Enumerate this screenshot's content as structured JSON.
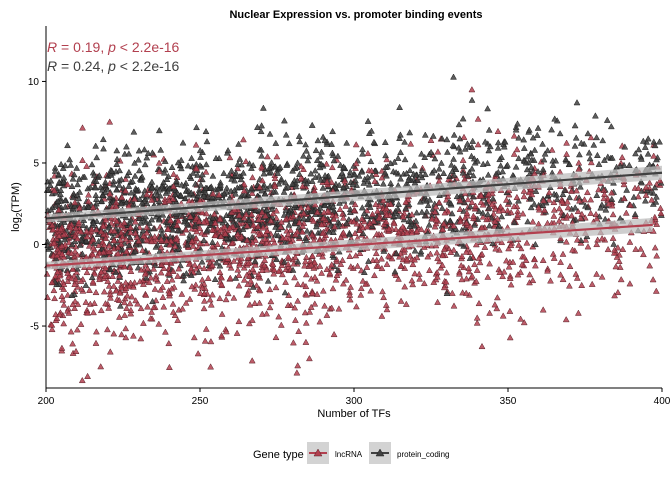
{
  "chart_data": {
    "type": "scatter",
    "title": "Nuclear Expression vs. promoter binding events",
    "xlabel": "Number of TFs",
    "ylabel_main": "log",
    "ylabel_sub": "2",
    "ylabel_tail": "(TPM)",
    "xlim": [
      200,
      400
    ],
    "ylim": [
      -8.8,
      13.4
    ],
    "x_ticks": [
      200,
      250,
      300,
      350,
      400
    ],
    "y_ticks": [
      -5,
      0,
      5,
      10
    ],
    "grid": false,
    "marker": "triangle",
    "legend_title": "Gene type",
    "legend_position": "bottom",
    "series": [
      {
        "name": "lncRNA",
        "color": "#b2404f",
        "stat_r": "R",
        "stat_rest": " = 0.19, ",
        "stat_p": "p",
        "stat_tail": " < 2.2e-16",
        "trend": {
          "x0": 200,
          "y0": -1.3,
          "x1": 397,
          "y1": 1.2
        }
      },
      {
        "name": "protein_coding",
        "color": "#404040",
        "stat_r": "R",
        "stat_rest": " = 0.24, ",
        "stat_p": "p",
        "stat_tail": " < 2.2e-16",
        "trend": {
          "x0": 200,
          "y0": 1.6,
          "x1": 400,
          "y1": 4.4
        }
      }
    ]
  }
}
